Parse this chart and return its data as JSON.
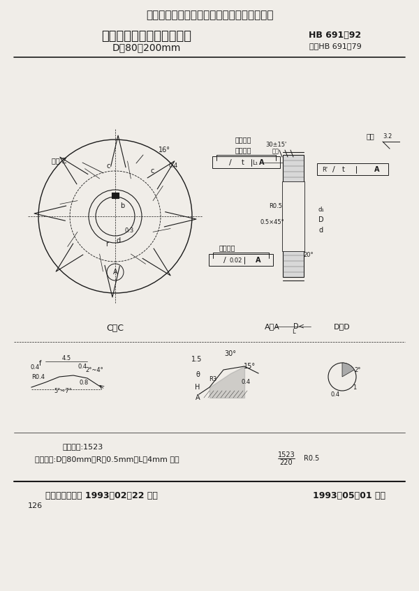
{
  "bg_color": "#f0ede8",
  "line_color": "#1a1a1a",
  "title1": "中华人民共和国航空航天工业部航空工业标准",
  "title2": "加工深槽用错齿三面刃铣刀",
  "title2_right": "HB 691－92",
  "subtitle": "D＝80～200mm",
  "subtitle_right": "代替HB 691－79",
  "footer_left": "航空航天工业部 1993－02－22 发布",
  "footer_right": "1993－05－01 实施",
  "page_num": "126",
  "class_label": "分类代号:1523",
  "mark_label": "标记示例:D＝80mm，R＝0.5mm，L＝4mm 铣刀",
  "mark_fraction": "1523\n220",
  "mark_r": "R0.5",
  "section_cc": "C－C",
  "section_aa": "A－A",
  "section_dd": "D－D"
}
